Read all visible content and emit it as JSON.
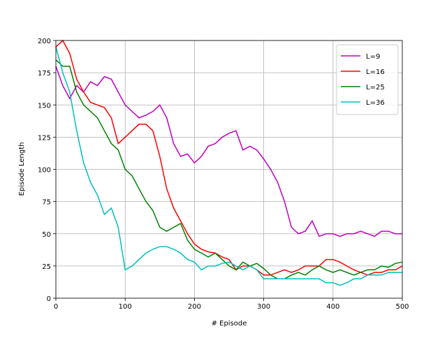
{
  "chart_data": {
    "type": "line",
    "xlabel": "# Episode",
    "ylabel": "Episode Length",
    "x": [
      0,
      10,
      20,
      30,
      40,
      50,
      60,
      70,
      80,
      90,
      100,
      110,
      120,
      130,
      140,
      150,
      160,
      170,
      180,
      190,
      200,
      210,
      220,
      230,
      240,
      250,
      260,
      270,
      280,
      290,
      300,
      310,
      320,
      330,
      340,
      350,
      360,
      370,
      380,
      390,
      400,
      410,
      420,
      430,
      440,
      450,
      460,
      470,
      480,
      490,
      500
    ],
    "series": [
      {
        "name": "L=9",
        "color": "#bf00bf",
        "values": [
          180,
          165,
          155,
          165,
          160,
          168,
          165,
          172,
          170,
          160,
          150,
          145,
          140,
          142,
          145,
          150,
          140,
          120,
          110,
          112,
          105,
          110,
          118,
          120,
          125,
          128,
          130,
          115,
          118,
          115,
          108,
          100,
          90,
          75,
          55,
          50,
          52,
          60,
          48,
          50,
          50,
          48,
          50,
          50,
          52,
          50,
          48,
          52,
          52,
          50,
          50
        ]
      },
      {
        "name": "L=16",
        "color": "#ff0000",
        "values": [
          195,
          200,
          190,
          170,
          160,
          152,
          150,
          148,
          140,
          120,
          125,
          130,
          135,
          135,
          130,
          110,
          85,
          70,
          60,
          50,
          42,
          38,
          36,
          35,
          32,
          30,
          22,
          25,
          25,
          22,
          18,
          18,
          20,
          22,
          20,
          22,
          25,
          25,
          25,
          30,
          30,
          28,
          25,
          22,
          20,
          18,
          20,
          20,
          22,
          22,
          25
        ]
      },
      {
        "name": "L=25",
        "color": "#008000",
        "values": [
          185,
          180,
          180,
          160,
          150,
          145,
          140,
          130,
          120,
          115,
          100,
          95,
          85,
          75,
          68,
          55,
          52,
          55,
          58,
          45,
          38,
          35,
          32,
          35,
          30,
          25,
          22,
          28,
          25,
          27,
          23,
          18,
          15,
          15,
          18,
          20,
          18,
          22,
          25,
          22,
          20,
          22,
          20,
          18,
          20,
          22,
          22,
          25,
          24,
          27,
          28
        ]
      },
      {
        "name": "L=36",
        "color": "#00bfbf",
        "values": [
          195,
          175,
          160,
          130,
          105,
          90,
          80,
          65,
          70,
          55,
          22,
          25,
          30,
          35,
          38,
          40,
          40,
          38,
          35,
          30,
          28,
          22,
          25,
          25,
          27,
          28,
          25,
          22,
          25,
          22,
          15,
          15,
          15,
          15,
          15,
          15,
          15,
          15,
          15,
          12,
          12,
          10,
          12,
          15,
          15,
          18,
          18,
          18,
          20,
          20,
          20
        ]
      }
    ],
    "xlim": [
      0,
      500
    ],
    "xticks": [
      0,
      100,
      200,
      300,
      400,
      500
    ],
    "ylim": [
      0,
      200
    ],
    "yticks": [
      0,
      25,
      50,
      75,
      100,
      125,
      150,
      175,
      200
    ],
    "grid": true,
    "legend": "upper right"
  }
}
